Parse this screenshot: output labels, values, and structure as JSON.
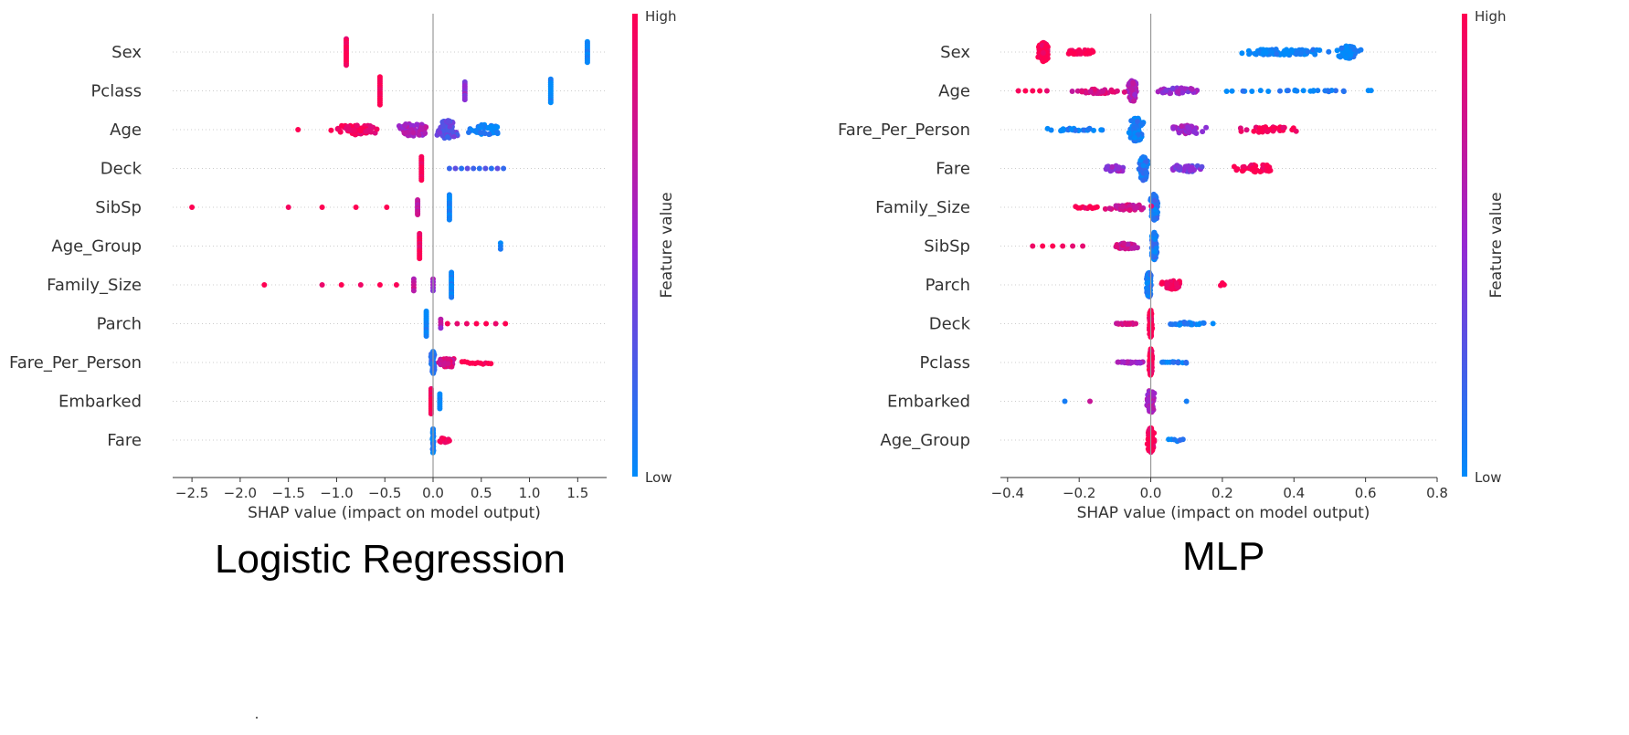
{
  "colors": {
    "high": "#ff0052",
    "low": "#008bfb",
    "axis": "#333333",
    "zero_line": "#999999",
    "grid": "#cccccc"
  },
  "captions": {
    "left": "Logistic Regression",
    "right": "MLP"
  },
  "chart_data": [
    {
      "type": "scatter",
      "subtype": "shap-beeswarm",
      "title": "Logistic Regression",
      "xlabel": "SHAP value (impact on model output)",
      "xlim": [
        -2.7,
        1.8
      ],
      "xticks": [
        -2.5,
        -2.0,
        -1.5,
        -1.0,
        -0.5,
        0.0,
        0.5,
        1.0,
        1.5
      ],
      "xtick_labels": [
        "−2.5",
        "−2.0",
        "−1.5",
        "−1.0",
        "−0.5",
        "0.0",
        "0.5",
        "1.0",
        "1.5"
      ],
      "colorbar": {
        "label": "Feature value",
        "high": "High",
        "low": "Low"
      },
      "features": [
        {
          "name": "Sex",
          "clusters": [
            {
              "x": -0.9,
              "spread": 0.0,
              "count": 14,
              "c": 1.0,
              "ht": 0.9
            },
            {
              "x": 1.6,
              "spread": 0.0,
              "count": 14,
              "c": 0.0,
              "ht": 0.7
            }
          ]
        },
        {
          "name": "Pclass",
          "clusters": [
            {
              "x": -0.55,
              "spread": 0.0,
              "count": 14,
              "c": 1.0,
              "ht": 0.95
            },
            {
              "x": 0.33,
              "spread": 0.0,
              "count": 10,
              "c": 0.5,
              "ht": 0.6
            },
            {
              "x": 1.22,
              "spread": 0.0,
              "count": 14,
              "c": 0.0,
              "ht": 0.8
            }
          ]
        },
        {
          "name": "Age",
          "clusters": [
            {
              "x": -1.4,
              "spread": 0.0,
              "count": 1,
              "c": 1.0,
              "ht": 0.0
            },
            {
              "x": -0.8,
              "spread": 0.3,
              "count": 60,
              "c": 0.95,
              "ht": 0.35
            },
            {
              "x": -0.2,
              "spread": 0.25,
              "count": 70,
              "c": 0.6,
              "ht": 0.45
            },
            {
              "x": 0.15,
              "spread": 0.15,
              "count": 80,
              "c": 0.3,
              "ht": 0.65
            },
            {
              "x": 0.55,
              "spread": 0.25,
              "count": 40,
              "c": 0.05,
              "ht": 0.35
            }
          ]
        },
        {
          "name": "Deck",
          "clusters": [
            {
              "x": -0.12,
              "spread": 0.0,
              "count": 14,
              "c": 1.0,
              "ht": 0.8
            },
            {
              "x": 0.45,
              "spread": 0.28,
              "count": 10,
              "c": 0.2,
              "ht": 0.0
            }
          ]
        },
        {
          "name": "SibSp",
          "clusters": [
            {
              "x": -2.5,
              "spread": 0.0,
              "count": 1,
              "c": 1.0,
              "ht": 0.0
            },
            {
              "x": -1.5,
              "spread": 0.0,
              "count": 1,
              "c": 1.0,
              "ht": 0.0
            },
            {
              "x": -1.15,
              "spread": 0.0,
              "count": 1,
              "c": 1.0,
              "ht": 0.0
            },
            {
              "x": -0.8,
              "spread": 0.0,
              "count": 1,
              "c": 1.0,
              "ht": 0.0
            },
            {
              "x": -0.48,
              "spread": 0.0,
              "count": 1,
              "c": 1.0,
              "ht": 0.0
            },
            {
              "x": -0.16,
              "spread": 0.0,
              "count": 10,
              "c": 0.7,
              "ht": 0.5
            },
            {
              "x": 0.17,
              "spread": 0.0,
              "count": 16,
              "c": 0.0,
              "ht": 0.85
            }
          ]
        },
        {
          "name": "Age_Group",
          "clusters": [
            {
              "x": -0.14,
              "spread": 0.0,
              "count": 16,
              "c": 0.95,
              "ht": 0.85
            },
            {
              "x": 0.7,
              "spread": 0.0,
              "count": 3,
              "c": 0.0,
              "ht": 0.2
            }
          ]
        },
        {
          "name": "Family_Size",
          "clusters": [
            {
              "x": -1.75,
              "spread": 0.0,
              "count": 1,
              "c": 1.0,
              "ht": 0.0
            },
            {
              "x": -1.15,
              "spread": 0.0,
              "count": 1,
              "c": 1.0,
              "ht": 0.0
            },
            {
              "x": -0.95,
              "spread": 0.0,
              "count": 1,
              "c": 1.0,
              "ht": 0.0
            },
            {
              "x": -0.75,
              "spread": 0.0,
              "count": 1,
              "c": 1.0,
              "ht": 0.0
            },
            {
              "x": -0.55,
              "spread": 0.0,
              "count": 1,
              "c": 1.0,
              "ht": 0.0
            },
            {
              "x": -0.38,
              "spread": 0.0,
              "count": 1,
              "c": 0.9,
              "ht": 0.0
            },
            {
              "x": -0.2,
              "spread": 0.0,
              "count": 5,
              "c": 0.7,
              "ht": 0.4
            },
            {
              "x": 0.0,
              "spread": 0.0,
              "count": 5,
              "c": 0.5,
              "ht": 0.4
            },
            {
              "x": 0.19,
              "spread": 0.0,
              "count": 16,
              "c": 0.0,
              "ht": 0.85
            }
          ]
        },
        {
          "name": "Parch",
          "clusters": [
            {
              "x": -0.07,
              "spread": 0.0,
              "count": 16,
              "c": 0.0,
              "ht": 0.85
            },
            {
              "x": 0.08,
              "spread": 0.0,
              "count": 4,
              "c": 0.6,
              "ht": 0.3
            },
            {
              "x": 0.45,
              "spread": 0.3,
              "count": 7,
              "c": 1.0,
              "ht": 0.0
            }
          ]
        },
        {
          "name": "Fare_Per_Person",
          "clusters": [
            {
              "x": 0.0,
              "spread": 0.03,
              "count": 45,
              "c": 0.1,
              "ht": 0.8
            },
            {
              "x": 0.15,
              "spread": 0.12,
              "count": 50,
              "c": 0.8,
              "ht": 0.35
            },
            {
              "x": 0.45,
              "spread": 0.15,
              "count": 12,
              "c": 1.0,
              "ht": 0.15
            }
          ]
        },
        {
          "name": "Embarked",
          "clusters": [
            {
              "x": -0.02,
              "spread": 0.0,
              "count": 16,
              "c": 1.0,
              "ht": 0.85
            },
            {
              "x": 0.07,
              "spread": 0.0,
              "count": 8,
              "c": 0.0,
              "ht": 0.5
            }
          ]
        },
        {
          "name": "Fare",
          "clusters": [
            {
              "x": 0.0,
              "spread": 0.01,
              "count": 28,
              "c": 0.05,
              "ht": 0.9
            },
            {
              "x": 0.12,
              "spread": 0.05,
              "count": 10,
              "c": 1.0,
              "ht": 0.2
            }
          ]
        }
      ]
    },
    {
      "type": "scatter",
      "subtype": "shap-beeswarm",
      "title": "MLP",
      "xlabel": "SHAP value (impact on model output)",
      "xlim": [
        -0.42,
        0.8
      ],
      "xticks": [
        -0.4,
        -0.2,
        0.0,
        0.2,
        0.4,
        0.6,
        0.8
      ],
      "xtick_labels": [
        "−0.4",
        "−0.2",
        "0.0",
        "0.2",
        "0.4",
        "0.6",
        "0.8"
      ],
      "colorbar": {
        "label": "Feature value",
        "high": "High",
        "low": "Low"
      },
      "features": [
        {
          "name": "Sex",
          "clusters": [
            {
              "x": -0.3,
              "spread": 0.02,
              "count": 160,
              "c": 1.0,
              "ht": 0.65
            },
            {
              "x": -0.2,
              "spread": 0.07,
              "count": 40,
              "c": 1.0,
              "ht": 0.15
            },
            {
              "x": 0.38,
              "spread": 0.2,
              "count": 90,
              "c": 0.0,
              "ht": 0.2
            },
            {
              "x": 0.55,
              "spread": 0.04,
              "count": 60,
              "c": 0.0,
              "ht": 0.45
            }
          ]
        },
        {
          "name": "Age",
          "clusters": [
            {
              "x": -0.05,
              "spread": 0.02,
              "count": 90,
              "c": 0.6,
              "ht": 0.75
            },
            {
              "x": -0.15,
              "spread": 0.1,
              "count": 35,
              "c": 0.8,
              "ht": 0.2
            },
            {
              "x": 0.08,
              "spread": 0.1,
              "count": 40,
              "c": 0.5,
              "ht": 0.2
            },
            {
              "x": 0.4,
              "spread": 0.35,
              "count": 28,
              "c": 0.05,
              "ht": 0.05
            },
            {
              "x": -0.33,
              "spread": 0.04,
              "count": 5,
              "c": 1.0,
              "ht": 0.0
            }
          ]
        },
        {
          "name": "Fare_Per_Person",
          "clusters": [
            {
              "x": -0.04,
              "spread": 0.03,
              "count": 100,
              "c": 0.05,
              "ht": 0.85
            },
            {
              "x": -0.22,
              "spread": 0.14,
              "count": 30,
              "c": 0.05,
              "ht": 0.1
            },
            {
              "x": 0.1,
              "spread": 0.08,
              "count": 40,
              "c": 0.55,
              "ht": 0.3
            },
            {
              "x": 0.33,
              "spread": 0.12,
              "count": 40,
              "c": 0.95,
              "ht": 0.2
            }
          ]
        },
        {
          "name": "Fare",
          "clusters": [
            {
              "x": -0.02,
              "spread": 0.02,
              "count": 90,
              "c": 0.1,
              "ht": 0.85
            },
            {
              "x": -0.1,
              "spread": 0.06,
              "count": 20,
              "c": 0.5,
              "ht": 0.2
            },
            {
              "x": 0.1,
              "spread": 0.08,
              "count": 30,
              "c": 0.4,
              "ht": 0.25
            },
            {
              "x": 0.3,
              "spread": 0.1,
              "count": 35,
              "c": 1.0,
              "ht": 0.25
            }
          ]
        },
        {
          "name": "Family_Size",
          "clusters": [
            {
              "x": 0.01,
              "spread": 0.015,
              "count": 110,
              "c": 0.1,
              "ht": 0.95
            },
            {
              "x": -0.06,
              "spread": 0.08,
              "count": 40,
              "c": 0.75,
              "ht": 0.2
            },
            {
              "x": -0.18,
              "spread": 0.03,
              "count": 10,
              "c": 1.0,
              "ht": 0.1
            }
          ]
        },
        {
          "name": "SibSp",
          "clusters": [
            {
              "x": 0.01,
              "spread": 0.012,
              "count": 110,
              "c": 0.1,
              "ht": 0.95
            },
            {
              "x": -0.07,
              "spread": 0.05,
              "count": 35,
              "c": 0.75,
              "ht": 0.2
            },
            {
              "x": -0.26,
              "spread": 0.07,
              "count": 6,
              "c": 1.0,
              "ht": 0.0
            }
          ]
        },
        {
          "name": "Parch",
          "clusters": [
            {
              "x": -0.005,
              "spread": 0.01,
              "count": 110,
              "c": 0.1,
              "ht": 0.9
            },
            {
              "x": 0.06,
              "spread": 0.05,
              "count": 40,
              "c": 1.0,
              "ht": 0.3
            },
            {
              "x": 0.2,
              "spread": 0.005,
              "count": 3,
              "c": 1.0,
              "ht": 0.2
            }
          ]
        },
        {
          "name": "Deck",
          "clusters": [
            {
              "x": 0.0,
              "spread": 0.006,
              "count": 100,
              "c": 1.0,
              "ht": 0.95
            },
            {
              "x": -0.07,
              "spread": 0.05,
              "count": 25,
              "c": 0.75,
              "ht": 0.05
            },
            {
              "x": 0.1,
              "spread": 0.1,
              "count": 25,
              "c": 0.05,
              "ht": 0.1
            }
          ]
        },
        {
          "name": "Pclass",
          "clusters": [
            {
              "x": 0.0,
              "spread": 0.006,
              "count": 100,
              "c": 1.0,
              "ht": 0.95
            },
            {
              "x": -0.06,
              "spread": 0.09,
              "count": 25,
              "c": 0.6,
              "ht": 0.05
            },
            {
              "x": 0.07,
              "spread": 0.07,
              "count": 15,
              "c": 0.05,
              "ht": 0.05
            }
          ]
        },
        {
          "name": "Embarked",
          "clusters": [
            {
              "x": 0.0,
              "spread": 0.02,
              "count": 70,
              "c": 0.6,
              "ht": 0.8
            },
            {
              "x": -0.24,
              "spread": 0.0,
              "count": 1,
              "c": 0.0,
              "ht": 0.0
            },
            {
              "x": -0.17,
              "spread": 0.0,
              "count": 1,
              "c": 0.65,
              "ht": 0.0
            },
            {
              "x": 0.1,
              "spread": 0.0,
              "count": 1,
              "c": 0.0,
              "ht": 0.0
            }
          ]
        },
        {
          "name": "Age_Group",
          "clusters": [
            {
              "x": 0.0,
              "spread": 0.015,
              "count": 110,
              "c": 1.0,
              "ht": 0.85
            },
            {
              "x": 0.07,
              "spread": 0.02,
              "count": 6,
              "c": 0.05,
              "ht": 0.1
            }
          ]
        }
      ]
    }
  ]
}
